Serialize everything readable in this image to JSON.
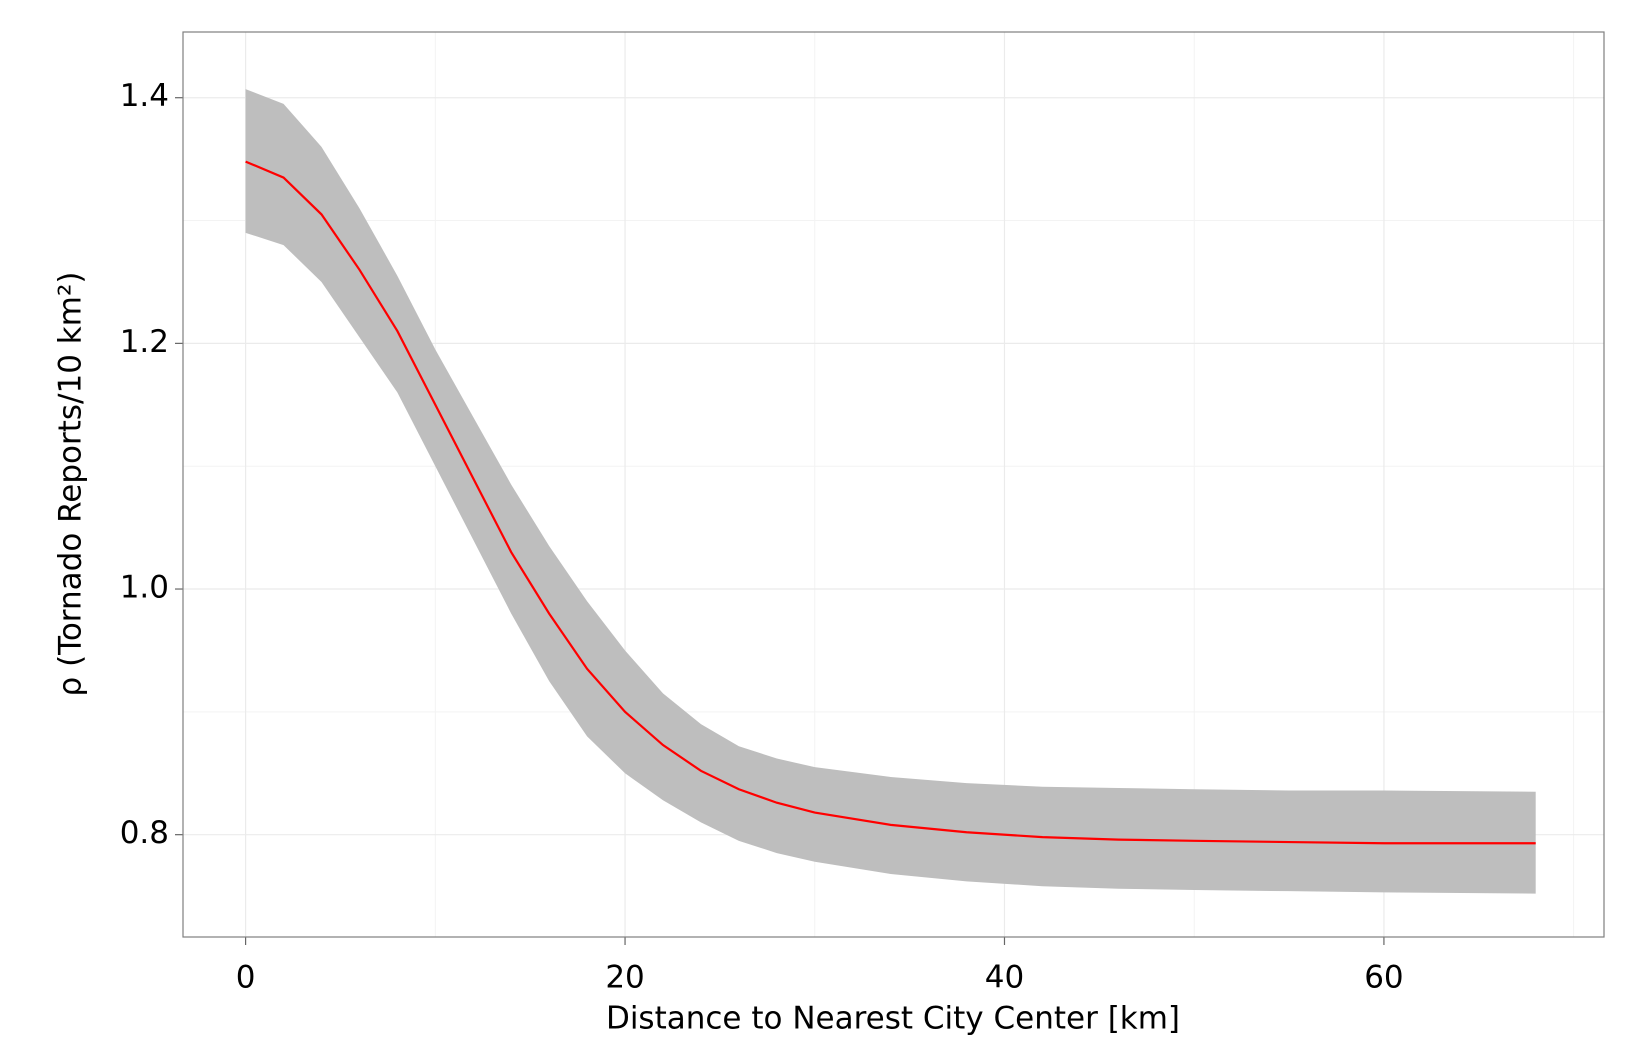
{
  "chart_data": {
    "type": "line",
    "xlabel": "Distance to Nearest City Center [km]",
    "ylabel": "ρ (Tornado Reports/10 km²)",
    "x": [
      0,
      2,
      4,
      6,
      8,
      10,
      12,
      14,
      16,
      18,
      20,
      22,
      24,
      26,
      28,
      30,
      34,
      38,
      42,
      46,
      50,
      55,
      60,
      68
    ],
    "line": {
      "color": "#ff0000",
      "values": [
        1.348,
        1.335,
        1.305,
        1.26,
        1.21,
        1.15,
        1.09,
        1.03,
        0.98,
        0.935,
        0.9,
        0.873,
        0.852,
        0.837,
        0.826,
        0.818,
        0.808,
        0.802,
        0.798,
        0.796,
        0.795,
        0.794,
        0.793,
        0.793
      ]
    },
    "band": {
      "color": "#bebebe",
      "upper": [
        1.407,
        1.395,
        1.36,
        1.31,
        1.255,
        1.195,
        1.14,
        1.085,
        1.035,
        0.99,
        0.95,
        0.915,
        0.89,
        0.872,
        0.862,
        0.855,
        0.847,
        0.842,
        0.839,
        0.838,
        0.837,
        0.836,
        0.836,
        0.835
      ],
      "lower": [
        1.29,
        1.28,
        1.25,
        1.205,
        1.16,
        1.1,
        1.04,
        0.98,
        0.925,
        0.88,
        0.85,
        0.828,
        0.81,
        0.795,
        0.785,
        0.778,
        0.768,
        0.762,
        0.758,
        0.756,
        0.755,
        0.754,
        0.753,
        0.752
      ]
    },
    "xlim": [
      -3.3,
      71.6
    ],
    "ylim": [
      0.7167,
      1.4535
    ],
    "xticks": [
      0,
      20,
      40,
      60
    ],
    "yticks": [
      0.8,
      {
        "value": 1,
        "label": "1.0"
      },
      1.2,
      1.4
    ],
    "xminor": [
      10,
      30,
      50,
      70
    ],
    "yminor": [
      0.9,
      1.1,
      1.3
    ],
    "grid": true
  }
}
